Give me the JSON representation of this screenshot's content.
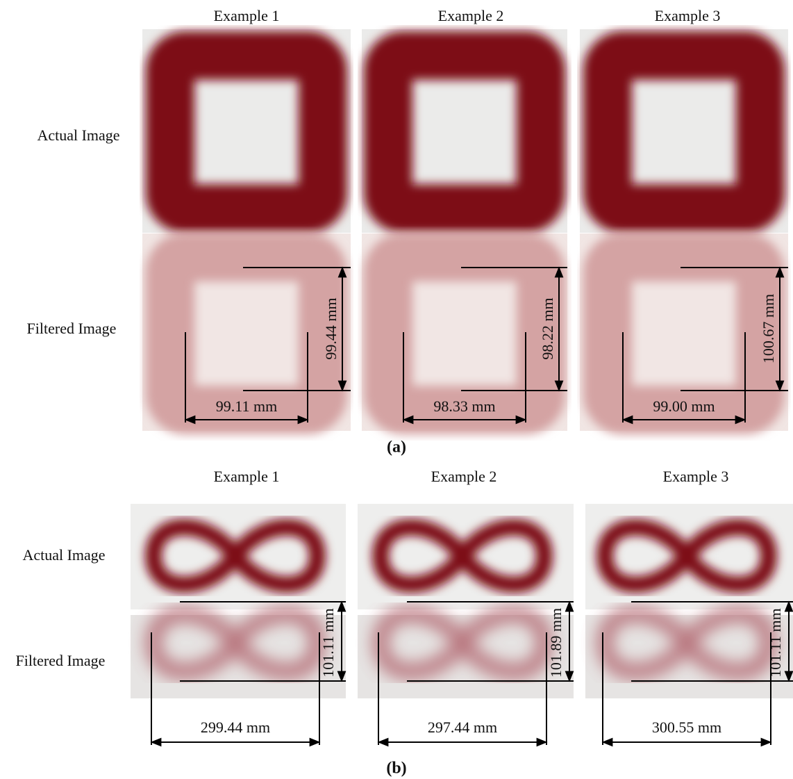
{
  "panel_a": {
    "columns": [
      "Example 1",
      "Example 2",
      "Example 3"
    ],
    "rows": [
      "Actual Image",
      "Filtered Image"
    ],
    "heights": [
      "99.44 mm",
      "98.22 mm",
      "100.67 mm"
    ],
    "widths": [
      "99.11 mm",
      "98.33 mm",
      "99.00 mm"
    ],
    "caption": "(a)"
  },
  "panel_b": {
    "columns": [
      "Example 1",
      "Example 2",
      "Example 3"
    ],
    "rows": [
      "Actual Image",
      "Filtered Image"
    ],
    "heights": [
      "101.11 mm",
      "101.89 mm",
      "101.11 mm"
    ],
    "widths": [
      "299.44 mm",
      "297.44 mm",
      "300.55 mm"
    ],
    "caption": "(b)"
  }
}
